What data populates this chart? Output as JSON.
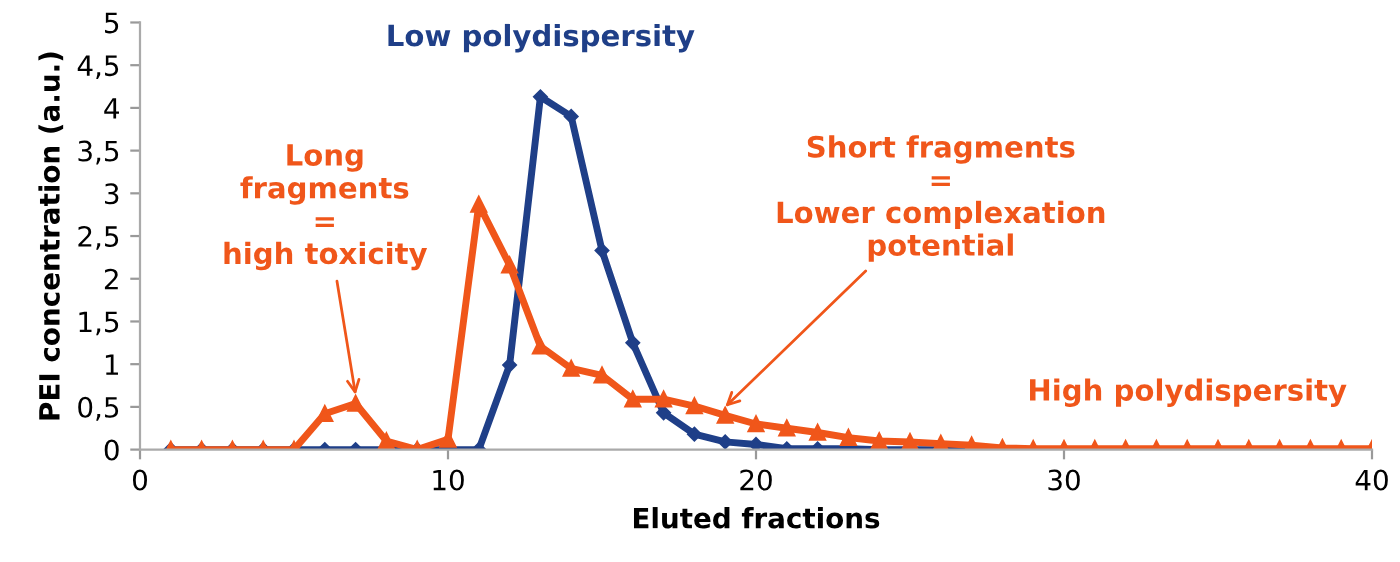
{
  "chart_data": {
    "type": "line",
    "xlabel": "Eluted fractions",
    "ylabel": "PEI concentration (a.u.)",
    "x": [
      1,
      2,
      3,
      4,
      5,
      6,
      7,
      8,
      9,
      10,
      11,
      12,
      13,
      14,
      15,
      16,
      17,
      18,
      19,
      20,
      21,
      22,
      23,
      24,
      25,
      26,
      27,
      28,
      29,
      30,
      31,
      32,
      33,
      34,
      35,
      36,
      37,
      38,
      39,
      40
    ],
    "series": [
      {
        "color": "#1f3f88",
        "marker": "diamond",
        "values": [
          0,
          0,
          0,
          0,
          0,
          0,
          0,
          0,
          0,
          0,
          0,
          0.99,
          4.13,
          3.9,
          2.33,
          1.25,
          0.43,
          0.18,
          0.09,
          0.06,
          0.01,
          0.01,
          0.01,
          0,
          0,
          0,
          0,
          0,
          null,
          null,
          null,
          null,
          null,
          null,
          null,
          null,
          null,
          null,
          null,
          null
        ]
      },
      {
        "color": "#f0561a",
        "marker": "triangle",
        "values": [
          0,
          0,
          0,
          0,
          0,
          0.42,
          0.54,
          0.1,
          0,
          0.12,
          2.87,
          2.16,
          1.21,
          0.95,
          0.87,
          0.59,
          0.59,
          0.51,
          0.4,
          0.3,
          0.25,
          0.2,
          0.14,
          0.1,
          0.09,
          0.07,
          0.05,
          0.02,
          0.01,
          0.01,
          0.01,
          0.01,
          0.01,
          0.01,
          0.01,
          0.01,
          0.01,
          0.01,
          0.01,
          0.01
        ]
      }
    ],
    "xlim": [
      0,
      40
    ],
    "xticks": [
      0,
      10,
      20,
      30,
      40
    ],
    "ylim": [
      0,
      5
    ],
    "yticks": [
      0,
      {
        "value": 0.5,
        "label": "0,5"
      },
      1,
      {
        "value": 1.5,
        "label": "1,5"
      },
      2,
      {
        "value": 2.5,
        "label": "2,5"
      },
      3,
      {
        "value": 3.5,
        "label": "3,5"
      },
      4,
      {
        "value": 4.5,
        "label": "4,5"
      },
      5
    ],
    "grid": false,
    "legend": false,
    "line_style": "solid",
    "annotations": [
      "Low polydispersity",
      {
        "text": "Long\nfragments\n=\nhigh toxicity",
        "x": 7,
        "y": 0.54
      },
      {
        "text": "Short fragments\n=\nLower complexation\npotential",
        "x": 19,
        "y": 0.4
      },
      "High polydispersity"
    ]
  }
}
